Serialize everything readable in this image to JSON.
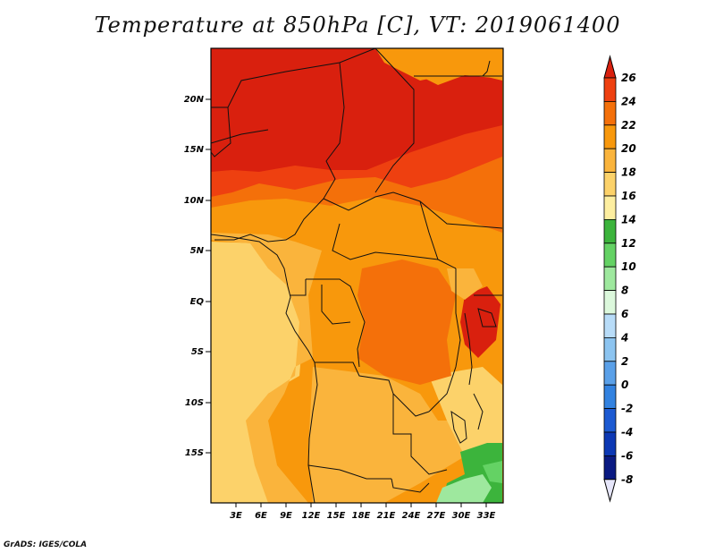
{
  "title": "Temperature at 850hPa [C], VT: 2019061400",
  "credit": "GrADS: IGES/COLA",
  "map": {
    "lat_labels": [
      "20N",
      "15N",
      "10N",
      "5N",
      "EQ",
      "5S",
      "10S",
      "15S"
    ],
    "lon_labels": [
      "3E",
      "6E",
      "9E",
      "12E",
      "15E",
      "18E",
      "21E",
      "24E",
      "27E",
      "30E",
      "33E"
    ]
  },
  "colorbar": {
    "labels": [
      "26",
      "24",
      "22",
      "20",
      "18",
      "16",
      "14",
      "12",
      "10",
      "8",
      "6",
      "4",
      "2",
      "0",
      "-2",
      "-4",
      "-6",
      "-8"
    ],
    "colors": [
      "#d9200e",
      "#ee4010",
      "#f4700a",
      "#f8980c",
      "#fab43c",
      "#fcd26a",
      "#fdeea0",
      "#3cb43c",
      "#64d264",
      "#9ee89e",
      "#dcf8dc",
      "#b8dcf8",
      "#8cc4f0",
      "#5aa0e8",
      "#3282e0",
      "#1c5ad2",
      "#0c38b4",
      "#0a1a82"
    ],
    "over_color": "#d9200e",
    "under_color": "#e6e6fa"
  }
}
